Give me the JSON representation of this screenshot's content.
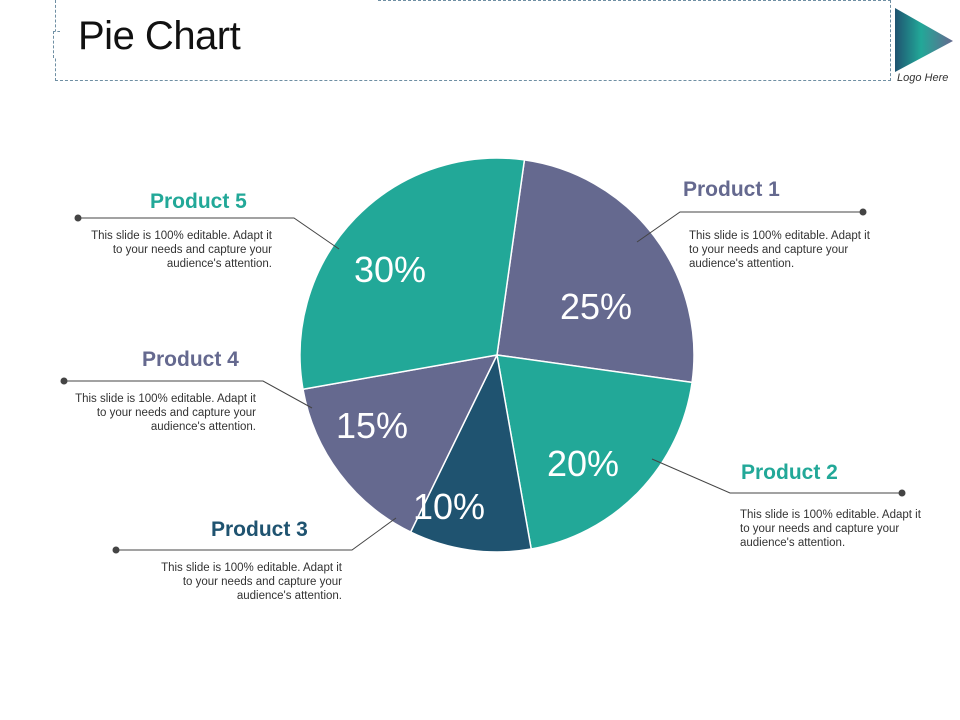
{
  "slide": {
    "title": "Pie Chart",
    "logo_text": "Logo Here",
    "description": "This slide is 100% editable. Adapt it to your needs and capture your audience's attention."
  },
  "colors": {
    "teal": "#22a898",
    "slate": "#65698f",
    "navy": "#1f5370",
    "leader": "#333333"
  },
  "chart_data": {
    "type": "pie",
    "title": "",
    "start_angle_deg": 8,
    "slices": [
      {
        "name": "Product 1",
        "value": 25,
        "label": "25%",
        "color": "#65698f"
      },
      {
        "name": "Product 2",
        "value": 20,
        "label": "20%",
        "color": "#22a898"
      },
      {
        "name": "Product 3",
        "value": 10,
        "label": "10%",
        "color": "#1f5370"
      },
      {
        "name": "Product 4",
        "value": 15,
        "label": "15%",
        "color": "#65698f"
      },
      {
        "name": "Product 5",
        "value": 30,
        "label": "30%",
        "color": "#22a898"
      }
    ]
  }
}
